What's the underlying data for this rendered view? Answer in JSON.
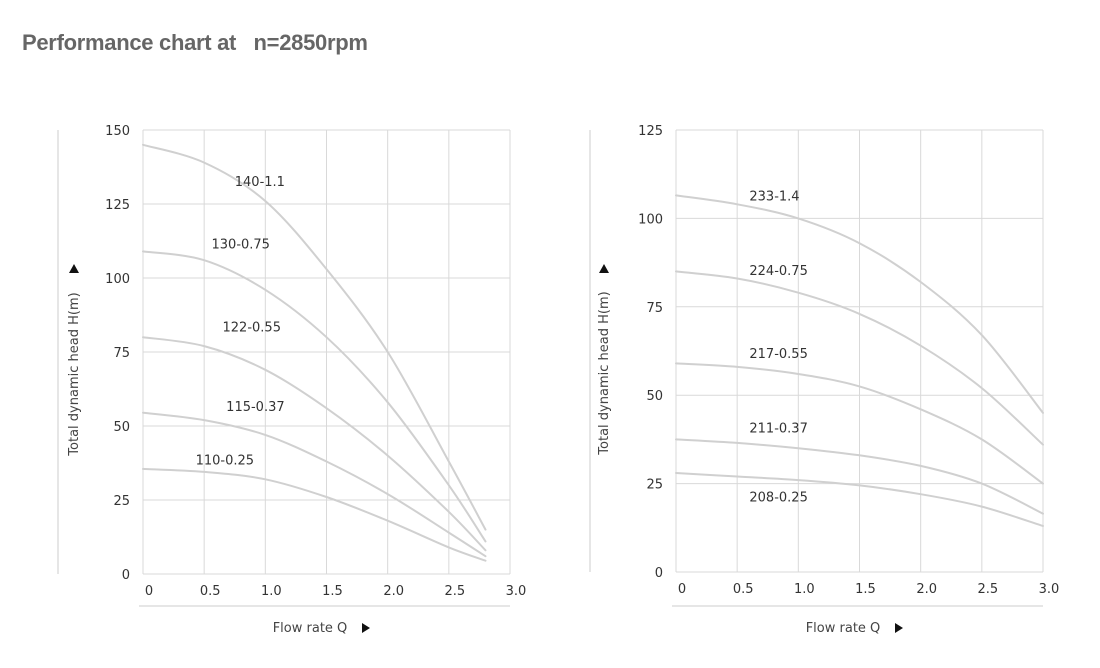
{
  "title": "Performance chart at   n=2850rpm",
  "chart_data": [
    {
      "type": "line",
      "title": "",
      "xlabel": "Flow rate Q",
      "ylabel": "Total dynamic head H(m)",
      "xlim": [
        0,
        3.0
      ],
      "ylim": [
        0,
        150
      ],
      "xticks": [
        0,
        0.5,
        1.0,
        1.5,
        2.0,
        2.5,
        3.0
      ],
      "xtick_labels": [
        "0",
        "0.5",
        "1.0",
        "1.5",
        "2.0",
        "2.5",
        "3.0"
      ],
      "yticks": [
        0,
        25,
        50,
        75,
        100,
        125,
        150
      ],
      "ytick_labels": [
        "0",
        "25",
        "50",
        "75",
        "100",
        "125",
        "150"
      ],
      "grid": true,
      "series": [
        {
          "name": "140-1.1",
          "label_at": [
            0.75,
            131
          ],
          "x": [
            0,
            0.5,
            1.0,
            1.5,
            2.0,
            2.5,
            2.8
          ],
          "y": [
            145,
            139,
            126,
            103,
            75,
            38,
            15
          ]
        },
        {
          "name": "130-0.75",
          "label_at": [
            0.56,
            110
          ],
          "x": [
            0,
            0.5,
            1.0,
            1.5,
            2.0,
            2.5,
            2.8
          ],
          "y": [
            109,
            106,
            96,
            80,
            58,
            30,
            11
          ]
        },
        {
          "name": "122-0.55",
          "label_at": [
            0.65,
            82
          ],
          "x": [
            0,
            0.5,
            1.0,
            1.5,
            2.0,
            2.5,
            2.8
          ],
          "y": [
            80,
            77,
            69,
            56,
            40,
            21,
            8
          ]
        },
        {
          "name": "115-0.37",
          "label_at": [
            0.68,
            55
          ],
          "x": [
            0,
            0.5,
            1.0,
            1.5,
            2.0,
            2.5,
            2.8
          ],
          "y": [
            54.5,
            52,
            47,
            38,
            27,
            14,
            6
          ]
        },
        {
          "name": "110-0.25",
          "label_at": [
            0.43,
            37
          ],
          "x": [
            0,
            0.5,
            1.0,
            1.5,
            2.0,
            2.5,
            2.8
          ],
          "y": [
            35.5,
            34.5,
            32,
            26,
            18,
            9,
            4.5
          ]
        }
      ]
    },
    {
      "type": "line",
      "title": "",
      "xlabel": "Flow rate Q",
      "ylabel": "Total dynamic head H(m)",
      "xlim": [
        0,
        3.0
      ],
      "ylim": [
        0,
        125
      ],
      "xticks": [
        0,
        0.5,
        1.0,
        1.5,
        2.0,
        2.5,
        3.0
      ],
      "xtick_labels": [
        "0",
        "0.5",
        "1.0",
        "1.5",
        "2.0",
        "2.5",
        "3.0"
      ],
      "yticks": [
        0,
        25,
        50,
        75,
        100,
        125
      ],
      "ytick_labels": [
        "0",
        "25",
        "50",
        "75",
        "100",
        "125"
      ],
      "grid": true,
      "series": [
        {
          "name": "233-1.4",
          "label_at": [
            0.6,
            105
          ],
          "x": [
            0,
            0.5,
            1.0,
            1.5,
            2.0,
            2.5,
            3.0
          ],
          "y": [
            106.5,
            104,
            100,
            93,
            82,
            67,
            45
          ]
        },
        {
          "name": "224-0.75",
          "label_at": [
            0.6,
            84
          ],
          "x": [
            0,
            0.5,
            1.0,
            1.5,
            2.0,
            2.5,
            3.0
          ],
          "y": [
            85,
            83,
            79,
            73,
            64,
            52,
            36
          ]
        },
        {
          "name": "217-0.55",
          "label_at": [
            0.6,
            60.5
          ],
          "x": [
            0,
            0.5,
            1.0,
            1.5,
            2.0,
            2.5,
            3.0
          ],
          "y": [
            59,
            58,
            56,
            52.5,
            46,
            37.5,
            25
          ]
        },
        {
          "name": "211-0.37",
          "label_at": [
            0.6,
            39.5
          ],
          "x": [
            0,
            0.5,
            1.0,
            1.5,
            2.0,
            2.5,
            3.0
          ],
          "y": [
            37.5,
            36.5,
            35,
            33,
            30,
            25,
            16.5
          ]
        },
        {
          "name": "208-0.25",
          "label_at": [
            0.6,
            20
          ],
          "x": [
            0,
            0.5,
            1.0,
            1.5,
            2.0,
            2.5,
            3.0
          ],
          "y": [
            28,
            27,
            26,
            24.5,
            22,
            18.5,
            13
          ]
        }
      ]
    }
  ]
}
